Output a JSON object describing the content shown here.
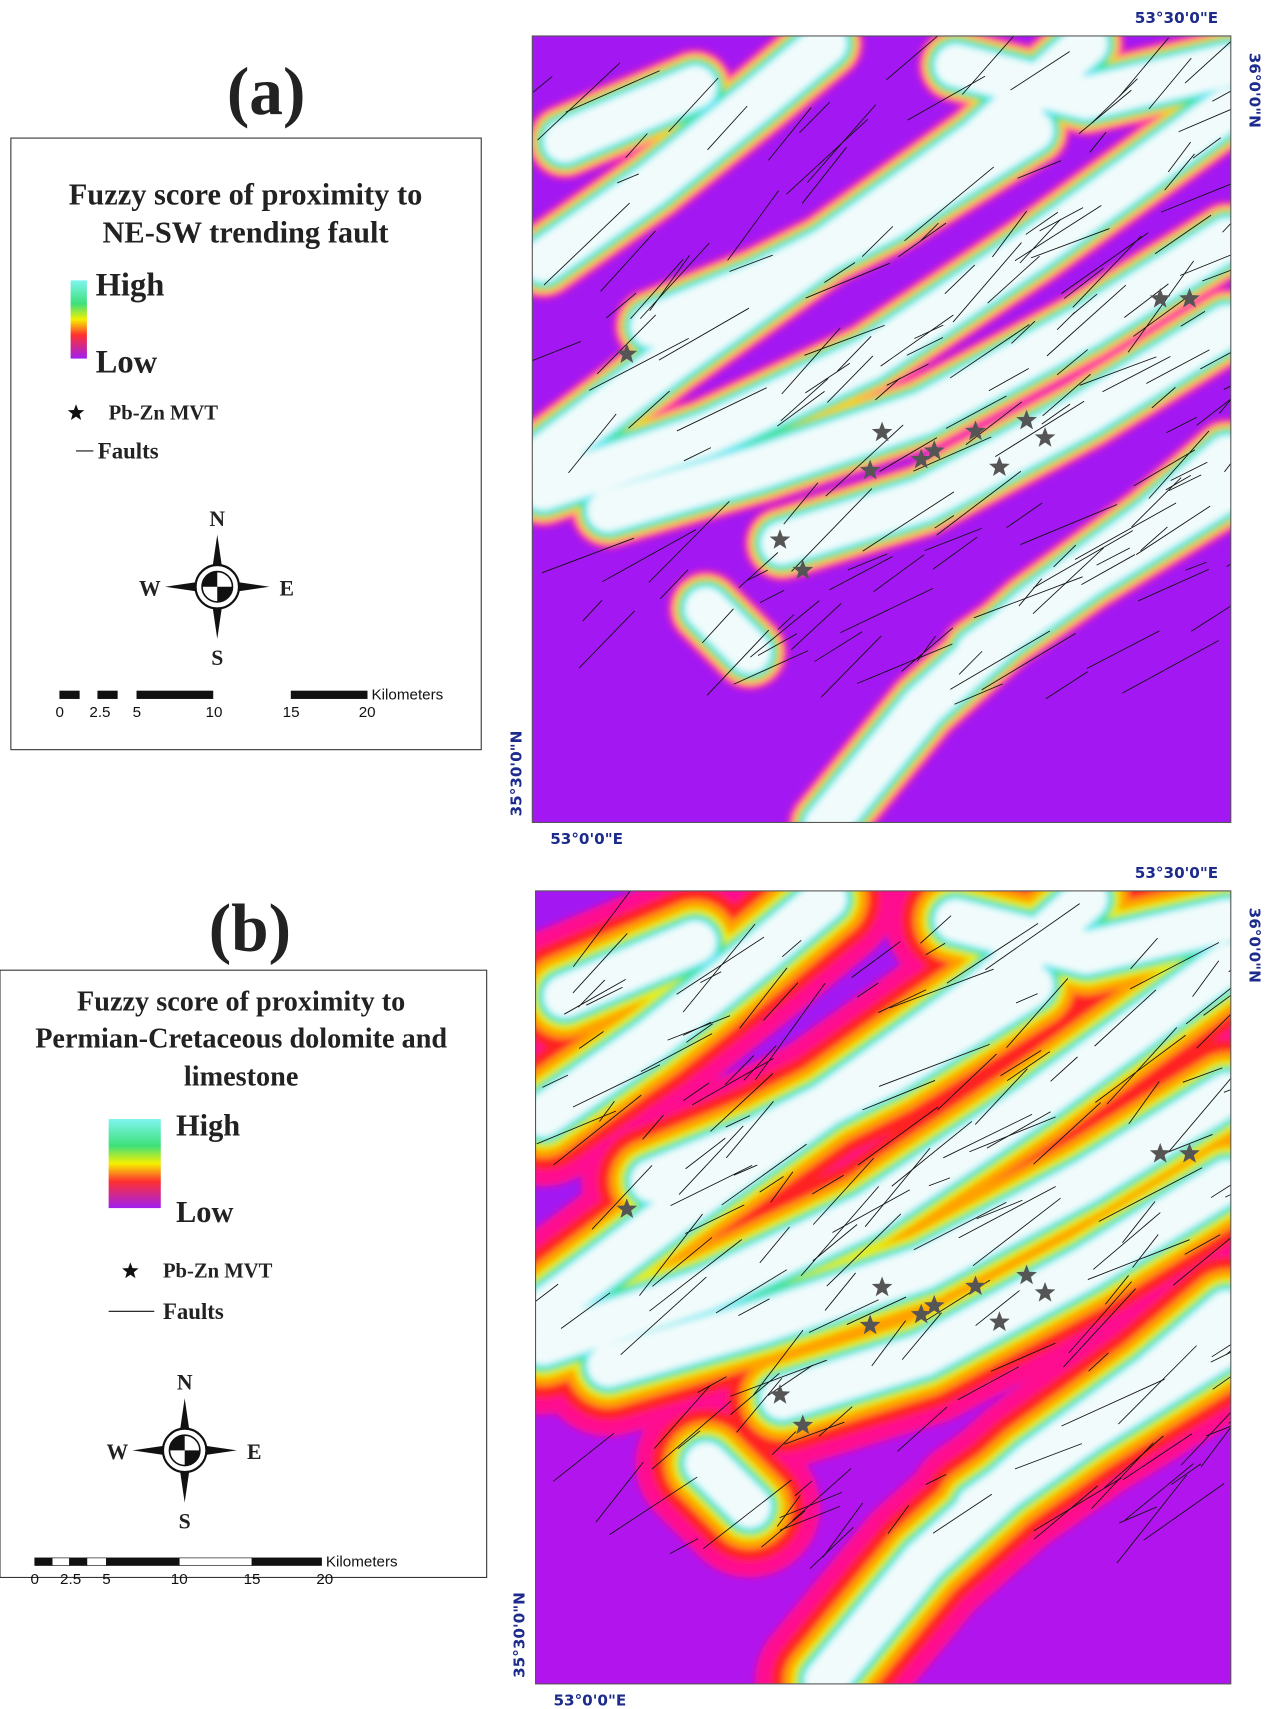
{
  "panels": [
    {
      "label": "(a)",
      "legend": {
        "title": [
          "Fuzzy score of proximity to",
          "NE-SW trending fault"
        ],
        "high": "High",
        "low": "Low",
        "deposit": "Pb-Zn MVT",
        "faults": "Faults"
      },
      "compass": {
        "n": "N",
        "s": "S",
        "e": "E",
        "w": "W"
      },
      "scale": {
        "labels": [
          "0",
          "2.5",
          "5",
          "10",
          "15",
          "20"
        ],
        "unit": "Kilometers"
      },
      "coords": {
        "top_lon": "53°30'0\"E",
        "right_lat": "36°0'0\"N",
        "left_lat": "35°30'0\"N",
        "bottom_lon": "53°0'0\"E"
      }
    },
    {
      "label": "(b)",
      "legend": {
        "title": [
          "Fuzzy score of proximity to",
          "Permian-Cretaceous dolomite and",
          "limestone"
        ],
        "high": "High",
        "low": "Low",
        "deposit": "Pb-Zn MVT",
        "faults": "Faults"
      },
      "compass": {
        "n": "N",
        "s": "S",
        "e": "E",
        "w": "W"
      },
      "scale": {
        "labels": [
          "0",
          "2.5",
          "5",
          "10",
          "15",
          "20"
        ],
        "unit": "Kilometers"
      },
      "coords": {
        "top_lon": "53°30'0\"E",
        "right_lat": "36°0'0\"N",
        "left_lat": "35°30'0\"N",
        "bottom_lon": "53°0'0\"E"
      }
    }
  ]
}
